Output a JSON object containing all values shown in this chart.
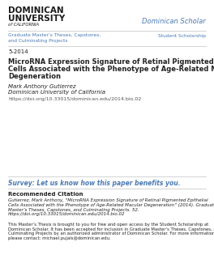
{
  "bg_color": "#ffffff",
  "logo_color": "#1a1a1a",
  "brand_title": "Dominican Scholar",
  "brand_color": "#4a7ab5",
  "nav_left_1": "Graduate Master’s Theses, Capstones,",
  "nav_left_2": "and Culminating Projects",
  "nav_right": "Student Scholarship",
  "nav_color": "#4a7ab5",
  "date": "5-2014",
  "paper_title_lines": [
    "MicroRNA Expression Signature of Retinal Pigmented Epithelial",
    "Cells Associated with the Phenotype of Age-Related Macular",
    "Degeneration"
  ],
  "author": "Mark Anthony Gutierrez",
  "institution": "Dominican University of California",
  "doi": "https://doi.org/10.33015/dominican.edu/2014.bio.02",
  "survey_text": "Survey: Let us know how this paper benefits you.",
  "survey_color": "#4a7ab5",
  "rec_citation_label": "Recommended Citation",
  "rec_citation_lines": [
    "Gutierrez, Mark Anthony, “MicroRNA Expression Signature of Retinal Pigmented Epithelial",
    "Cells Associated with the Phenotype of Age-Related Macular Degeneration” (2014). Graduate",
    "Master’s Theses, Capstones, and Culminating Projects. 52.",
    "https://doi.org/10.33015/dominican.edu/2014.bio.02"
  ],
  "footer_lines": [
    "This Master’s Thesis is brought to you for free and open access by the Student Scholarship at",
    "Dominican Scholar. It has been accepted for inclusion in Graduate Master’s Theses, Capstones, and",
    "Culminating Projects by an authorized administrator of Dominican Scholar. For more information,",
    "please contact: michael.pujals@dominican.edu."
  ],
  "footer_link": "michael.pujals@dominican.edu",
  "footer_link_color": "#4a7ab5",
  "line_color": "#cccccc",
  "text_dark": "#222222",
  "text_gray": "#555555"
}
